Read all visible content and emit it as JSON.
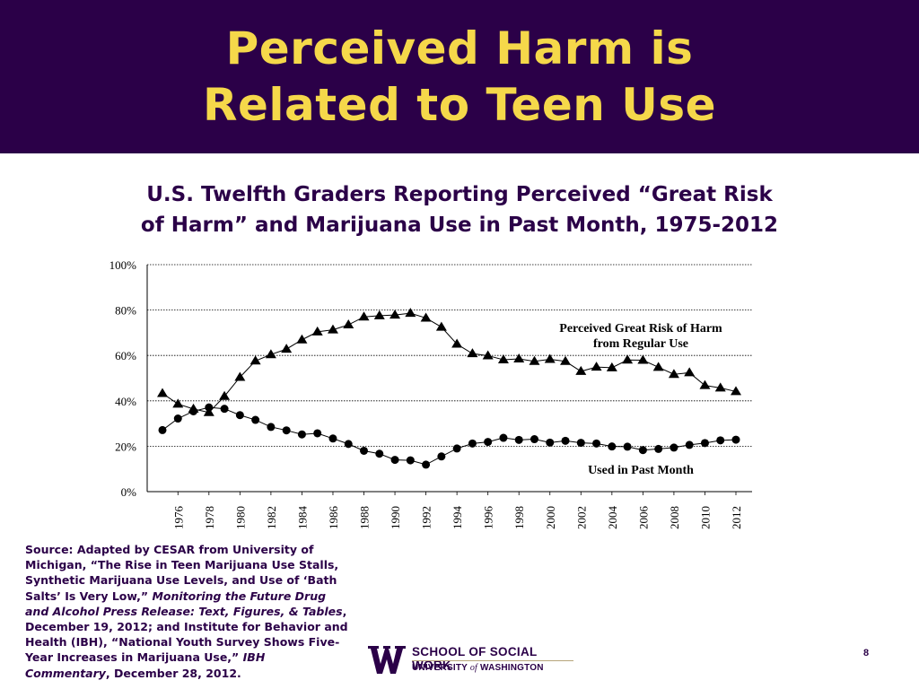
{
  "slide": {
    "title_line1": "Perceived Harm is",
    "title_line2": "Related to Teen Use",
    "page_number": "8"
  },
  "colors": {
    "header_bg": "#2b0048",
    "title": "#f5d84a",
    "text": "#2b0048"
  },
  "chart_data": {
    "type": "line",
    "title_line1": "U.S. Twelfth Graders Reporting Perceived “Great Risk",
    "title_line2": "of Harm” and Marijuana Use in Past Month, 1975-2012",
    "x": [
      1975,
      1976,
      1977,
      1978,
      1979,
      1980,
      1981,
      1982,
      1983,
      1984,
      1985,
      1986,
      1987,
      1988,
      1989,
      1990,
      1991,
      1992,
      1993,
      1994,
      1995,
      1996,
      1997,
      1998,
      1999,
      2000,
      2001,
      2002,
      2003,
      2004,
      2005,
      2006,
      2007,
      2008,
      2009,
      2010,
      2011,
      2012
    ],
    "x_tick_labels": [
      "1976",
      "1978",
      "1980",
      "1982",
      "1984",
      "1986",
      "1988",
      "1990",
      "1992",
      "1994",
      "1996",
      "1998",
      "2000",
      "2002",
      "2004",
      "2006",
      "2008",
      "2010",
      "2012"
    ],
    "y_tick_labels": [
      "0%",
      "20%",
      "40%",
      "60%",
      "80%",
      "100%"
    ],
    "ylim": [
      0,
      100
    ],
    "grid": "horizontal dotted",
    "series": [
      {
        "name_line1": "Perceived Great Risk of Harm",
        "name_line2": "from Regular Use",
        "marker": "triangle",
        "values": [
          43.3,
          38.6,
          36.4,
          34.9,
          42.0,
          50.4,
          57.6,
          60.4,
          62.8,
          66.9,
          70.4,
          71.3,
          73.5,
          77.0,
          77.5,
          77.8,
          78.6,
          76.5,
          72.5,
          65.0,
          60.8,
          59.9,
          58.1,
          58.5,
          57.4,
          58.3,
          57.4,
          53.0,
          54.9,
          54.6,
          58.0,
          57.9,
          54.8,
          51.7,
          52.4,
          46.8,
          45.7,
          44.1
        ]
      },
      {
        "name": "Used in Past Month",
        "marker": "circle",
        "values": [
          27.1,
          32.2,
          35.4,
          37.1,
          36.5,
          33.7,
          31.6,
          28.5,
          27.0,
          25.2,
          25.7,
          23.4,
          21.0,
          18.0,
          16.7,
          14.0,
          13.8,
          11.9,
          15.5,
          19.0,
          21.2,
          21.9,
          23.7,
          22.8,
          23.1,
          21.6,
          22.4,
          21.5,
          21.2,
          19.9,
          19.8,
          18.3,
          18.8,
          19.4,
          20.6,
          21.4,
          22.6,
          22.9
        ]
      }
    ]
  },
  "source": {
    "text_a": "Source: Adapted by CESAR from University of Michigan, “The Rise in Teen Marijuana Use Stalls, Synthetic Marijuana Use Levels, and Use of ‘Bath Salts’ Is Very Low,” ",
    "italic_a": "Monitoring the Future Drug and Alcohol Press Release: Text, Figures, & Tables",
    "text_b": ", December 19, 2012; and Institute for Behavior and Health (IBH), “National Youth Survey Shows Five-Year Increases in Marijuana Use,” ",
    "italic_b": "IBH Commentary",
    "text_c": ", December 28, 2012."
  },
  "logo": {
    "school": "SCHOOL OF SOCIAL WORK",
    "univ_a": "UNIVERSITY ",
    "univ_of": "of",
    "univ_b": " WASHINGTON"
  }
}
